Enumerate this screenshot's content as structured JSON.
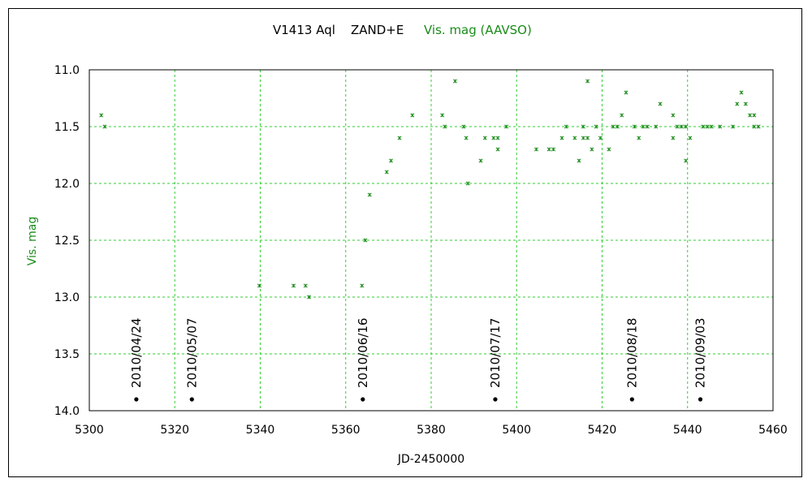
{
  "chart_data": {
    "type": "scatter",
    "title_object": "V1413 Aql    ZAND+E",
    "title_series": "Vis. mag (AAVSO)",
    "xlabel": "JD-2450000",
    "ylabel": "Vis. mag",
    "xlim": [
      5300,
      5460
    ],
    "ylim": [
      11.0,
      14.0
    ],
    "y_inverted": true,
    "grid": true,
    "x_ticks": [
      5300,
      5320,
      5340,
      5360,
      5380,
      5400,
      5420,
      5440,
      5460
    ],
    "y_ticks": [
      "11.0",
      "11.5",
      "12.0",
      "12.5",
      "13.0",
      "13.5",
      "14.0"
    ],
    "series_color": "#1a8c1a",
    "series": [
      {
        "name": "Vis. mag (AAVSO)",
        "points": [
          [
            5302.8,
            11.4
          ],
          [
            5303.6,
            11.5
          ],
          [
            5339.8,
            12.9
          ],
          [
            5347.8,
            12.9
          ],
          [
            5350.6,
            12.9
          ],
          [
            5351.4,
            13.0
          ],
          [
            5363.8,
            12.9
          ],
          [
            5364.6,
            12.5
          ],
          [
            5365.6,
            12.1
          ],
          [
            5369.6,
            11.9
          ],
          [
            5370.6,
            11.8
          ],
          [
            5372.6,
            11.6
          ],
          [
            5375.6,
            11.4
          ],
          [
            5382.6,
            11.4
          ],
          [
            5383.2,
            11.5
          ],
          [
            5385.6,
            11.1
          ],
          [
            5387.6,
            11.5
          ],
          [
            5388.6,
            12.0
          ],
          [
            5388.2,
            11.6
          ],
          [
            5391.6,
            11.8
          ],
          [
            5392.6,
            11.6
          ],
          [
            5394.6,
            11.6
          ],
          [
            5395.6,
            11.6
          ],
          [
            5395.6,
            11.7
          ],
          [
            5397.6,
            11.5
          ],
          [
            5404.6,
            11.7
          ],
          [
            5407.6,
            11.7
          ],
          [
            5408.6,
            11.7
          ],
          [
            5410.6,
            11.6
          ],
          [
            5411.6,
            11.5
          ],
          [
            5413.6,
            11.6
          ],
          [
            5414.6,
            11.8
          ],
          [
            5415.6,
            11.5
          ],
          [
            5415.6,
            11.6
          ],
          [
            5416.6,
            11.1
          ],
          [
            5416.6,
            11.6
          ],
          [
            5417.6,
            11.7
          ],
          [
            5418.6,
            11.5
          ],
          [
            5419.6,
            11.6
          ],
          [
            5421.6,
            11.7
          ],
          [
            5422.6,
            11.5
          ],
          [
            5423.6,
            11.5
          ],
          [
            5424.6,
            11.4
          ],
          [
            5425.6,
            11.2
          ],
          [
            5427.6,
            11.5
          ],
          [
            5428.6,
            11.6
          ],
          [
            5429.6,
            11.5
          ],
          [
            5430.6,
            11.5
          ],
          [
            5432.6,
            11.5
          ],
          [
            5433.6,
            11.3
          ],
          [
            5436.6,
            11.4
          ],
          [
            5436.6,
            11.6
          ],
          [
            5437.6,
            11.5
          ],
          [
            5438.6,
            11.5
          ],
          [
            5439.6,
            11.5
          ],
          [
            5439.6,
            11.8
          ],
          [
            5440.6,
            11.6
          ],
          [
            5443.6,
            11.5
          ],
          [
            5444.6,
            11.5
          ],
          [
            5445.6,
            11.5
          ],
          [
            5447.6,
            11.5
          ],
          [
            5450.6,
            11.5
          ],
          [
            5451.6,
            11.3
          ],
          [
            5452.6,
            11.2
          ],
          [
            5453.6,
            11.3
          ],
          [
            5454.6,
            11.4
          ],
          [
            5455.6,
            11.4
          ],
          [
            5455.6,
            11.5
          ],
          [
            5456.6,
            11.5
          ]
        ]
      }
    ],
    "date_markers": [
      {
        "label": "2010/04/24",
        "x": 5311.0,
        "y": 13.9
      },
      {
        "label": "2010/05/07",
        "x": 5324.0,
        "y": 13.9
      },
      {
        "label": "2010/06/16",
        "x": 5364.0,
        "y": 13.9
      },
      {
        "label": "2010/07/17",
        "x": 5395.0,
        "y": 13.9
      },
      {
        "label": "2010/08/18",
        "x": 5427.0,
        "y": 13.9
      },
      {
        "label": "2010/09/03",
        "x": 5443.0,
        "y": 13.9
      }
    ]
  }
}
